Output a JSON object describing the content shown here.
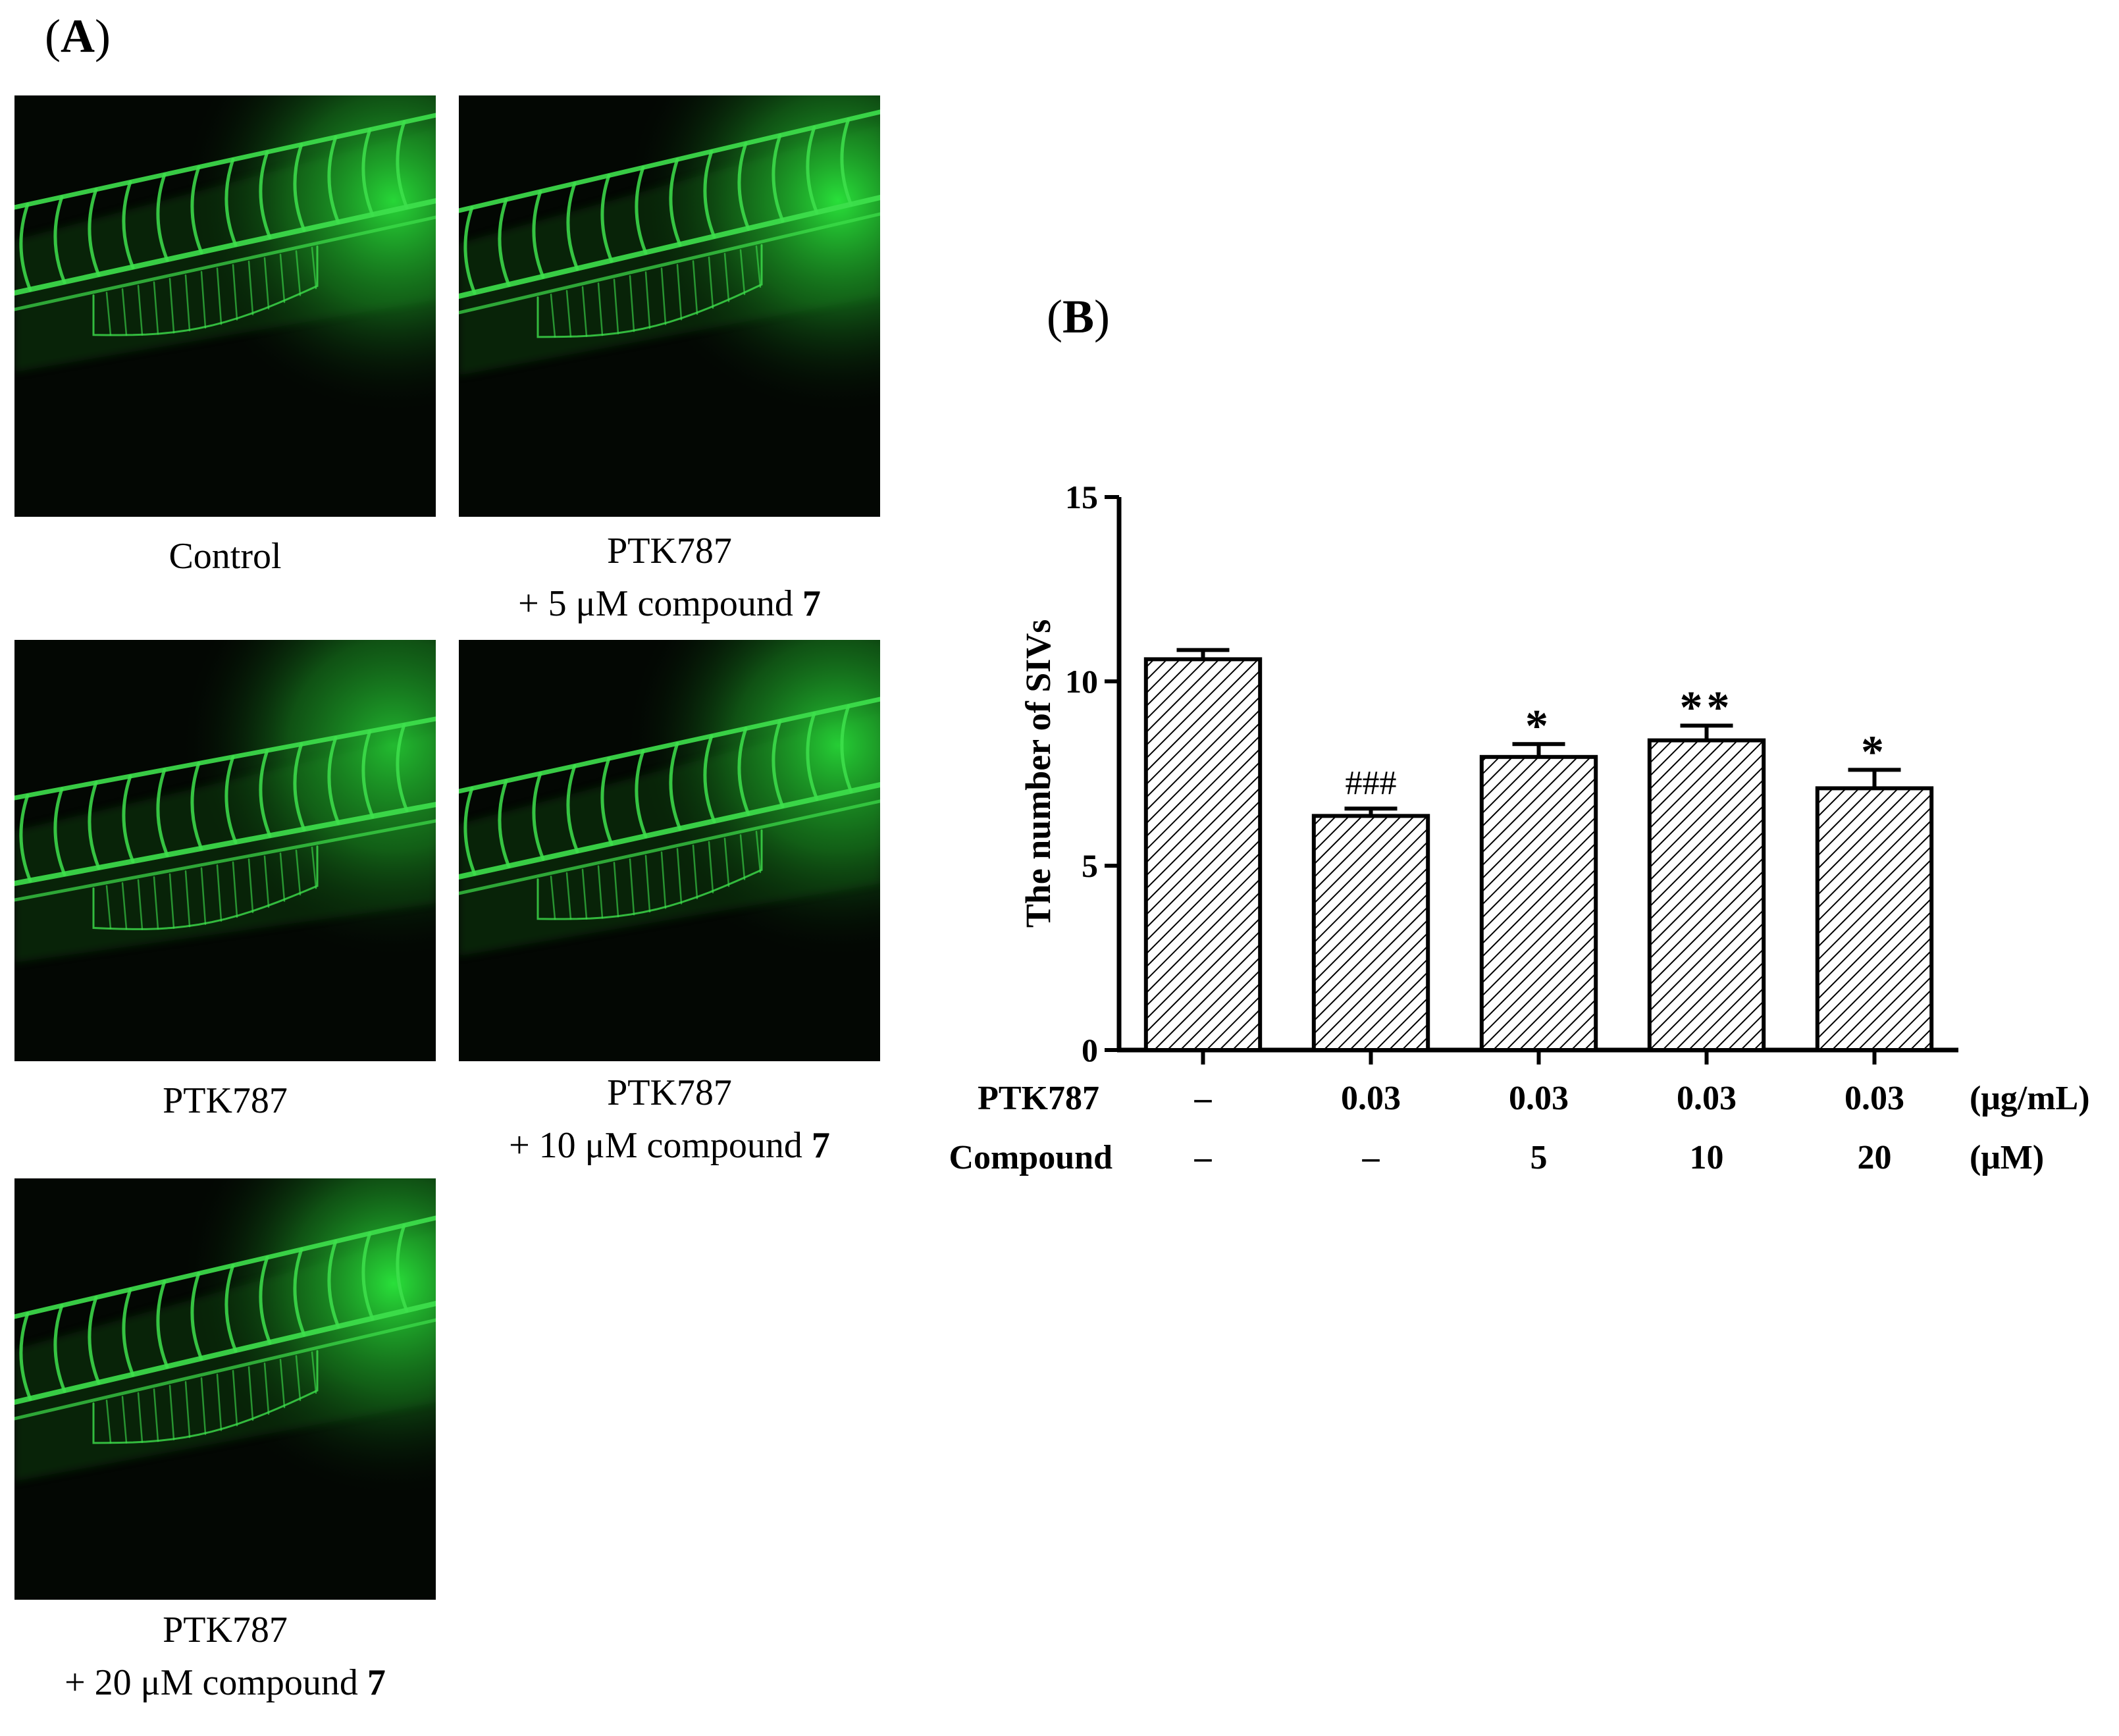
{
  "panel_a": {
    "label_open": "(",
    "label_letter": "A",
    "label_close": ")",
    "images": [
      {
        "name": "micro-control",
        "caption_line1": "Control",
        "caption_line2": "",
        "compound_number": ""
      },
      {
        "name": "micro-ptk787-5um",
        "caption_line1": "PTK787",
        "caption_line2": "+ 5 μM compound ",
        "compound_number": "7"
      },
      {
        "name": "micro-ptk787",
        "caption_line1": "PTK787",
        "caption_line2": "",
        "compound_number": ""
      },
      {
        "name": "micro-ptk787-10um",
        "caption_line1": "PTK787",
        "caption_line2": "+ 10 μM compound ",
        "compound_number": "7"
      },
      {
        "name": "micro-ptk787-20um",
        "caption_line1": "PTK787",
        "caption_line2": "+ 20 μM compound ",
        "compound_number": "7"
      }
    ]
  },
  "panel_b": {
    "label_open": "(",
    "label_letter": "B",
    "label_close": ")"
  },
  "chart_data": {
    "type": "bar",
    "ylabel": "The number of SIVs",
    "ylim": [
      0,
      15
    ],
    "yticks": [
      0,
      5,
      10,
      15
    ],
    "bar_pattern": "diagonal-hatch",
    "values": [
      10.6,
      6.35,
      7.95,
      8.4,
      7.1
    ],
    "errors": [
      0.25,
      0.2,
      0.35,
      0.4,
      0.5
    ],
    "significance": [
      "",
      "###",
      "*",
      "**",
      "*"
    ],
    "rows": [
      {
        "label": "PTK787",
        "values": [
          "–",
          "0.03",
          "0.03",
          "0.03",
          "0.03"
        ],
        "unit": "(μg/mL)"
      },
      {
        "label": "Compound",
        "values": [
          "–",
          "–",
          "5",
          "10",
          "20"
        ],
        "unit": "(μM)"
      }
    ]
  }
}
